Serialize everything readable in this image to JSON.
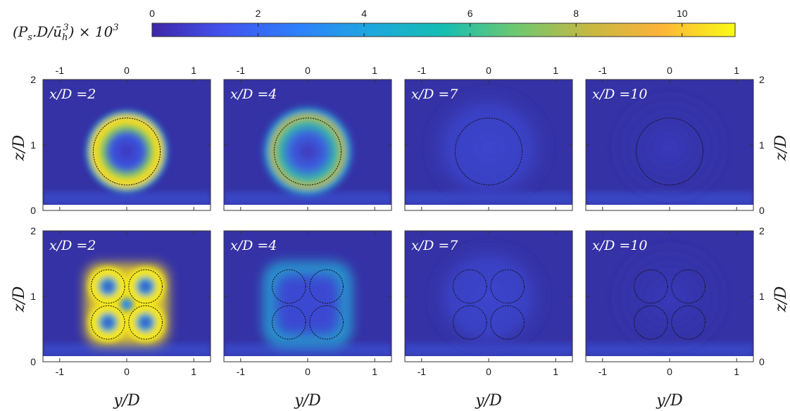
{
  "colorbar": {
    "label_main": "(P",
    "label_sub_s": "s",
    "label_mid": ".D/",
    "label_ubar": "ū",
    "label_sub_h": "h",
    "label_sup_3": "3",
    "label_tail": ") × 10",
    "label_exp": "3",
    "ticks": [
      "0",
      "2",
      "4",
      "6",
      "8",
      "10"
    ],
    "range": [
      0,
      11
    ]
  },
  "axes": {
    "xlabel": "y/D",
    "ylabel": "z/D",
    "x_ticks": [
      "-1",
      "0",
      "1"
    ],
    "y_ticks": [
      "0",
      "1",
      "2"
    ],
    "xlim": [
      -1.25,
      1.25
    ],
    "ylim": [
      0,
      2
    ]
  },
  "chart_data": {
    "type": "heatmap",
    "colormap": "parula",
    "xlabel": "y/D",
    "ylabel": "z/D",
    "xlim": [
      -1.25,
      1.25
    ],
    "ylim": [
      0,
      2
    ],
    "colorbar_range": [
      0,
      11
    ],
    "panels": [
      {
        "row": 1,
        "label": "x/D =2",
        "config": "single",
        "rotors": [
          {
            "y": 0,
            "z": 0.9,
            "d": 1
          }
        ],
        "peak": 10.5,
        "pattern": "ring"
      },
      {
        "row": 1,
        "label": "x/D =4",
        "config": "single",
        "rotors": [
          {
            "y": 0,
            "z": 0.9,
            "d": 1
          }
        ],
        "peak": 8.5,
        "pattern": "ring"
      },
      {
        "row": 1,
        "label": "x/D =7",
        "config": "single",
        "rotors": [
          {
            "y": 0,
            "z": 0.9,
            "d": 1
          }
        ],
        "peak": 3.0,
        "pattern": "diffuse"
      },
      {
        "row": 1,
        "label": "x/D =10",
        "config": "single",
        "rotors": [
          {
            "y": 0,
            "z": 0.9,
            "d": 1
          }
        ],
        "peak": 1.5,
        "pattern": "diffuse"
      },
      {
        "row": 2,
        "label": "x/D =2",
        "config": "quad",
        "rotors": [
          {
            "y": -0.28,
            "z": 1.15,
            "d": 0.5
          },
          {
            "y": 0.28,
            "z": 1.15,
            "d": 0.5
          },
          {
            "y": -0.28,
            "z": 0.6,
            "d": 0.5
          },
          {
            "y": 0.28,
            "z": 0.6,
            "d": 0.5
          }
        ],
        "peak": 11.0,
        "pattern": "rings"
      },
      {
        "row": 2,
        "label": "x/D =4",
        "config": "quad",
        "rotors": [
          {
            "y": -0.28,
            "z": 1.15,
            "d": 0.5
          },
          {
            "y": 0.28,
            "z": 1.15,
            "d": 0.5
          },
          {
            "y": -0.28,
            "z": 0.6,
            "d": 0.5
          },
          {
            "y": 0.28,
            "z": 0.6,
            "d": 0.5
          }
        ],
        "peak": 5.5,
        "pattern": "square"
      },
      {
        "row": 2,
        "label": "x/D =7",
        "config": "quad",
        "rotors": [
          {
            "y": -0.28,
            "z": 1.15,
            "d": 0.5
          },
          {
            "y": 0.28,
            "z": 1.15,
            "d": 0.5
          },
          {
            "y": -0.28,
            "z": 0.6,
            "d": 0.5
          },
          {
            "y": 0.28,
            "z": 0.6,
            "d": 0.5
          }
        ],
        "peak": 2.5,
        "pattern": "diffuse"
      },
      {
        "row": 2,
        "label": "x/D =10",
        "config": "quad",
        "rotors": [
          {
            "y": -0.28,
            "z": 1.15,
            "d": 0.5
          },
          {
            "y": 0.28,
            "z": 1.15,
            "d": 0.5
          },
          {
            "y": -0.28,
            "z": 0.6,
            "d": 0.5
          },
          {
            "y": 0.28,
            "z": 0.6,
            "d": 0.5
          }
        ],
        "peak": 1.5,
        "pattern": "diffuse"
      }
    ]
  }
}
